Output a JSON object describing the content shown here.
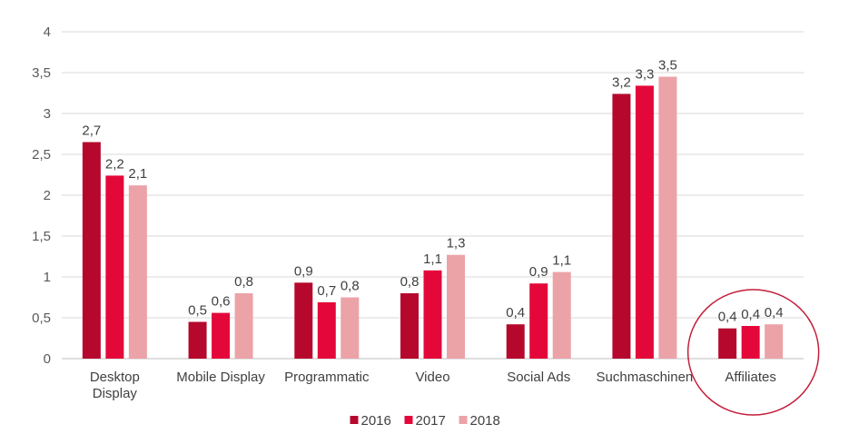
{
  "chart_data": {
    "type": "bar",
    "categories": [
      [
        "Desktop",
        "Display"
      ],
      [
        "Mobile Display"
      ],
      [
        "Programmatic"
      ],
      [
        "Video"
      ],
      [
        "Social Ads"
      ],
      [
        "Suchmaschinen"
      ],
      [
        "Affiliates"
      ]
    ],
    "series": [
      {
        "name": "2016",
        "color": "#b5082c",
        "values": [
          2.65,
          0.45,
          0.93,
          0.8,
          0.42,
          3.24,
          0.37
        ],
        "labels": [
          "2,7",
          "0,5",
          "0,9",
          "0,8",
          "0,4",
          "3,2",
          "0,4"
        ]
      },
      {
        "name": "2017",
        "color": "#e4083a",
        "values": [
          2.24,
          0.56,
          0.69,
          1.08,
          0.92,
          3.34,
          0.4
        ],
        "labels": [
          "2,2",
          "0,6",
          "0,7",
          "1,1",
          "0,9",
          "3,3",
          "0,4"
        ]
      },
      {
        "name": "2018",
        "color": "#eba3a8",
        "values": [
          2.12,
          0.8,
          0.75,
          1.27,
          1.06,
          3.45,
          0.42
        ],
        "labels": [
          "2,1",
          "0,8",
          "0,8",
          "1,3",
          "1,1",
          "3,5",
          "0,4"
        ]
      }
    ],
    "ylim": [
      0,
      4
    ],
    "yticks": [
      "0",
      "0,5",
      "1",
      "1,5",
      "2",
      "2,5",
      "3",
      "3,5",
      "4"
    ],
    "grid": true,
    "legend_position": "bottom",
    "highlight": {
      "category": "Affiliates",
      "shape": "circle",
      "color": "#c41e3a"
    }
  }
}
